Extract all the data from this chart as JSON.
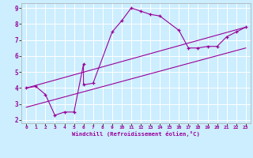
{
  "xlabel": "Windchill (Refroidissement éolien,°C)",
  "bg_color": "#cceeff",
  "line_color": "#990099",
  "grid_color": "#ffffff",
  "xlim": [
    -0.5,
    23.5
  ],
  "ylim": [
    1.8,
    9.3
  ],
  "xticks": [
    0,
    1,
    2,
    3,
    4,
    5,
    6,
    7,
    8,
    9,
    10,
    11,
    12,
    13,
    14,
    15,
    16,
    17,
    18,
    19,
    20,
    21,
    22,
    23
  ],
  "yticks": [
    2,
    3,
    4,
    5,
    6,
    7,
    8,
    9
  ],
  "line1_x": [
    0,
    1,
    2,
    3,
    4,
    5,
    6,
    6,
    7,
    9,
    10,
    11,
    12,
    13,
    14,
    16,
    17,
    18,
    19,
    20,
    21,
    22,
    23
  ],
  "line1_y": [
    4.0,
    4.1,
    3.6,
    2.3,
    2.5,
    2.5,
    5.5,
    4.2,
    4.3,
    7.5,
    8.2,
    9.0,
    8.8,
    8.6,
    8.5,
    7.6,
    6.5,
    6.5,
    6.6,
    6.6,
    7.2,
    7.5,
    7.8
  ],
  "line2_x": [
    0,
    23
  ],
  "line2_y": [
    4.0,
    7.8
  ],
  "line3_x": [
    0,
    23
  ],
  "line3_y": [
    2.8,
    6.5
  ]
}
